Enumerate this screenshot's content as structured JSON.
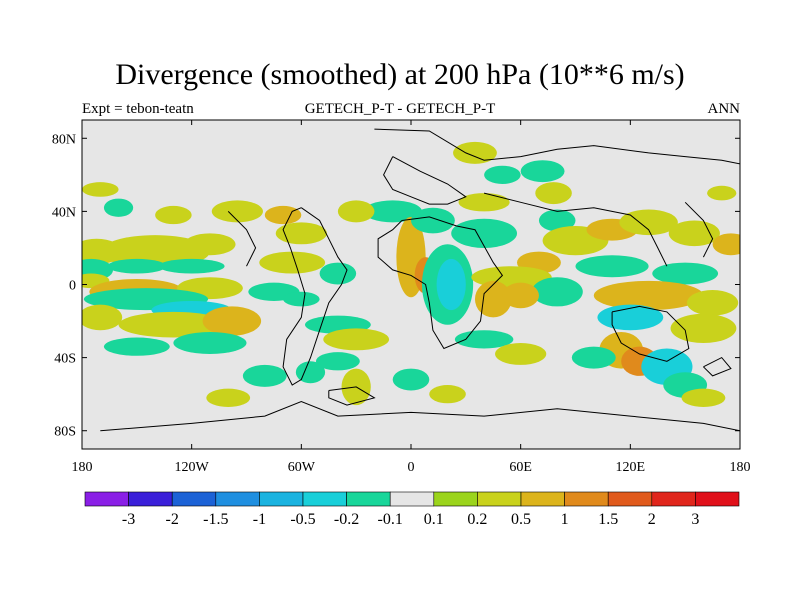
{
  "chart_data": {
    "type": "heatmap",
    "title": "Divergence (smoothed) at 200 hPa (10**6 m/s)",
    "left_string": "Expt = tebon-teatn",
    "center_string": "GETECH_P-T - GETECH_P-T",
    "right_string": "ANN",
    "xlim": [
      -180,
      180
    ],
    "ylim": [
      -90,
      90
    ],
    "x_ticks": [
      {
        "value": -180,
        "label": "180"
      },
      {
        "value": -120,
        "label": "120W"
      },
      {
        "value": -60,
        "label": "60W"
      },
      {
        "value": 0,
        "label": "0"
      },
      {
        "value": 60,
        "label": "60E"
      },
      {
        "value": 120,
        "label": "120E"
      },
      {
        "value": 180,
        "label": "180"
      }
    ],
    "y_ticks": [
      {
        "value": 80,
        "label": "80N"
      },
      {
        "value": 40,
        "label": "40N"
      },
      {
        "value": 0,
        "label": "0"
      },
      {
        "value": -40,
        "label": "40S"
      },
      {
        "value": -80,
        "label": "80S"
      }
    ],
    "colorbar": {
      "levels": [
        "-3",
        "-2",
        "-1.5",
        "-1",
        "-0.5",
        "-0.2",
        "-0.1",
        "0.1",
        "0.2",
        "0.5",
        "1",
        "1.5",
        "2",
        "3"
      ],
      "colors": [
        "#8a1fe6",
        "#3a1fd9",
        "#1c62d6",
        "#1f8fe0",
        "#1bb3e0",
        "#19cfd9",
        "#19d69a",
        "#e6e6e6",
        "#9bd41c",
        "#c9d21c",
        "#dcb41c",
        "#e08a1c",
        "#e05a1c",
        "#e0261c",
        "#e0101a"
      ]
    },
    "missing_color": "#e6e6e6",
    "blobs": [
      {
        "lon": -172,
        "lat": 18,
        "rx": 14,
        "ry": 7,
        "level": 0.2
      },
      {
        "lon": -150,
        "lat": 20,
        "rx": 10,
        "ry": 5,
        "level": 0.5
      },
      {
        "lon": -140,
        "lat": 18,
        "rx": 30,
        "ry": 9,
        "level": 0.2
      },
      {
        "lon": -110,
        "lat": 22,
        "rx": 14,
        "ry": 6,
        "level": 0.2
      },
      {
        "lon": -175,
        "lat": 8,
        "rx": 12,
        "ry": 6,
        "level": -0.2
      },
      {
        "lon": -150,
        "lat": 10,
        "rx": 16,
        "ry": 4,
        "level": -0.2
      },
      {
        "lon": -120,
        "lat": 10,
        "rx": 18,
        "ry": 4,
        "level": -0.2
      },
      {
        "lon": -175,
        "lat": 2,
        "rx": 10,
        "ry": 4,
        "level": 0.2
      },
      {
        "lon": -150,
        "lat": -4,
        "rx": 26,
        "ry": 7,
        "level": 0.5
      },
      {
        "lon": -110,
        "lat": -2,
        "rx": 18,
        "ry": 6,
        "level": 0.2
      },
      {
        "lon": -145,
        "lat": -8,
        "rx": 34,
        "ry": 6,
        "level": -0.2
      },
      {
        "lon": -120,
        "lat": -14,
        "rx": 22,
        "ry": 5,
        "level": -0.5
      },
      {
        "lon": -170,
        "lat": -18,
        "rx": 12,
        "ry": 7,
        "level": 0.2
      },
      {
        "lon": -130,
        "lat": -22,
        "rx": 30,
        "ry": 7,
        "level": 0.2
      },
      {
        "lon": -98,
        "lat": -20,
        "rx": 16,
        "ry": 8,
        "level": 0.5
      },
      {
        "lon": -150,
        "lat": -34,
        "rx": 18,
        "ry": 5,
        "level": -0.2
      },
      {
        "lon": -110,
        "lat": -32,
        "rx": 20,
        "ry": 6,
        "level": -0.2
      },
      {
        "lon": -160,
        "lat": 42,
        "rx": 8,
        "ry": 5,
        "level": -0.2
      },
      {
        "lon": -130,
        "lat": 38,
        "rx": 10,
        "ry": 5,
        "level": 0.2
      },
      {
        "lon": -95,
        "lat": 40,
        "rx": 14,
        "ry": 6,
        "level": 0.2
      },
      {
        "lon": -70,
        "lat": 38,
        "rx": 10,
        "ry": 5,
        "level": 0.5
      },
      {
        "lon": -60,
        "lat": 28,
        "rx": 14,
        "ry": 6,
        "level": 0.2
      },
      {
        "lon": -65,
        "lat": 12,
        "rx": 18,
        "ry": 6,
        "level": 0.2
      },
      {
        "lon": -40,
        "lat": 6,
        "rx": 10,
        "ry": 6,
        "level": -0.2
      },
      {
        "lon": -75,
        "lat": -4,
        "rx": 14,
        "ry": 5,
        "level": -0.2
      },
      {
        "lon": -60,
        "lat": -8,
        "rx": 10,
        "ry": 4,
        "level": -0.2
      },
      {
        "lon": -40,
        "lat": -22,
        "rx": 18,
        "ry": 5,
        "level": -0.2
      },
      {
        "lon": -30,
        "lat": -30,
        "rx": 18,
        "ry": 6,
        "level": 0.2
      },
      {
        "lon": -40,
        "lat": -42,
        "rx": 12,
        "ry": 5,
        "level": -0.2
      },
      {
        "lon": -10,
        "lat": 40,
        "rx": 16,
        "ry": 6,
        "level": -0.2
      },
      {
        "lon": -30,
        "lat": 40,
        "rx": 10,
        "ry": 6,
        "level": 0.2
      },
      {
        "lon": 0,
        "lat": 15,
        "rx": 8,
        "ry": 22,
        "level": 0.5
      },
      {
        "lon": 8,
        "lat": 5,
        "rx": 6,
        "ry": 10,
        "level": 1
      },
      {
        "lon": 20,
        "lat": 0,
        "rx": 14,
        "ry": 22,
        "level": -0.2
      },
      {
        "lon": 22,
        "lat": 0,
        "rx": 8,
        "ry": 14,
        "level": -0.5
      },
      {
        "lon": 40,
        "lat": 28,
        "rx": 18,
        "ry": 8,
        "level": -0.2
      },
      {
        "lon": 12,
        "lat": 35,
        "rx": 12,
        "ry": 7,
        "level": -0.2
      },
      {
        "lon": 50,
        "lat": 60,
        "rx": 10,
        "ry": 5,
        "level": -0.2
      },
      {
        "lon": 35,
        "lat": 72,
        "rx": 12,
        "ry": 6,
        "level": 0.2
      },
      {
        "lon": 40,
        "lat": 45,
        "rx": 14,
        "ry": 5,
        "level": 0.2
      },
      {
        "lon": 78,
        "lat": 50,
        "rx": 10,
        "ry": 6,
        "level": 0.2
      },
      {
        "lon": 80,
        "lat": 35,
        "rx": 10,
        "ry": 6,
        "level": -0.2
      },
      {
        "lon": 72,
        "lat": 62,
        "rx": 12,
        "ry": 6,
        "level": -0.2
      },
      {
        "lon": 70,
        "lat": 12,
        "rx": 12,
        "ry": 6,
        "level": 0.5
      },
      {
        "lon": 55,
        "lat": 4,
        "rx": 22,
        "ry": 6,
        "level": 0.2
      },
      {
        "lon": 90,
        "lat": 24,
        "rx": 18,
        "ry": 8,
        "level": 0.2
      },
      {
        "lon": 110,
        "lat": 30,
        "rx": 14,
        "ry": 6,
        "level": 0.5
      },
      {
        "lon": 130,
        "lat": 34,
        "rx": 16,
        "ry": 7,
        "level": 0.2
      },
      {
        "lon": 155,
        "lat": 28,
        "rx": 14,
        "ry": 7,
        "level": 0.2
      },
      {
        "lon": 175,
        "lat": 22,
        "rx": 10,
        "ry": 6,
        "level": 0.5
      },
      {
        "lon": 110,
        "lat": 10,
        "rx": 20,
        "ry": 6,
        "level": -0.2
      },
      {
        "lon": 150,
        "lat": 6,
        "rx": 18,
        "ry": 6,
        "level": -0.2
      },
      {
        "lon": 80,
        "lat": -4,
        "rx": 14,
        "ry": 8,
        "level": -0.2
      },
      {
        "lon": 45,
        "lat": -8,
        "rx": 10,
        "ry": 10,
        "level": 0.5
      },
      {
        "lon": 60,
        "lat": -6,
        "rx": 10,
        "ry": 7,
        "level": 0.5
      },
      {
        "lon": 130,
        "lat": -6,
        "rx": 30,
        "ry": 8,
        "level": 0.5
      },
      {
        "lon": 165,
        "lat": -10,
        "rx": 14,
        "ry": 7,
        "level": 0.2
      },
      {
        "lon": 120,
        "lat": -18,
        "rx": 18,
        "ry": 7,
        "level": -0.5
      },
      {
        "lon": 160,
        "lat": -24,
        "rx": 18,
        "ry": 8,
        "level": 0.2
      },
      {
        "lon": 115,
        "lat": -36,
        "rx": 12,
        "ry": 10,
        "level": 0.5
      },
      {
        "lon": 125,
        "lat": -42,
        "rx": 10,
        "ry": 8,
        "level": 1
      },
      {
        "lon": 140,
        "lat": -45,
        "rx": 14,
        "ry": 10,
        "level": -0.5
      },
      {
        "lon": 150,
        "lat": -55,
        "rx": 12,
        "ry": 7,
        "level": -0.2
      },
      {
        "lon": 160,
        "lat": -62,
        "rx": 12,
        "ry": 5,
        "level": 0.2
      },
      {
        "lon": 100,
        "lat": -40,
        "rx": 12,
        "ry": 6,
        "level": -0.2
      },
      {
        "lon": 40,
        "lat": -30,
        "rx": 16,
        "ry": 5,
        "level": -0.2
      },
      {
        "lon": 60,
        "lat": -38,
        "rx": 14,
        "ry": 6,
        "level": 0.2
      },
      {
        "lon": -100,
        "lat": -62,
        "rx": 12,
        "ry": 5,
        "level": 0.2
      },
      {
        "lon": -80,
        "lat": -50,
        "rx": 12,
        "ry": 6,
        "level": -0.2
      },
      {
        "lon": -55,
        "lat": -48,
        "rx": 8,
        "ry": 6,
        "level": -0.2
      },
      {
        "lon": -30,
        "lat": -56,
        "rx": 8,
        "ry": 10,
        "level": 0.2
      },
      {
        "lon": 0,
        "lat": -52,
        "rx": 10,
        "ry": 6,
        "level": -0.2
      },
      {
        "lon": 20,
        "lat": -60,
        "rx": 10,
        "ry": 5,
        "level": 0.2
      },
      {
        "lon": -170,
        "lat": 52,
        "rx": 10,
        "ry": 4,
        "level": 0.2
      },
      {
        "lon": 170,
        "lat": 50,
        "rx": 8,
        "ry": 4,
        "level": 0.2
      }
    ],
    "land_outlines": [
      [
        [
          -20,
          85
        ],
        [
          10,
          84
        ],
        [
          30,
          72
        ],
        [
          40,
          68
        ],
        [
          60,
          70
        ],
        [
          80,
          74
        ],
        [
          100,
          76
        ],
        [
          130,
          72
        ],
        [
          150,
          70
        ],
        [
          170,
          68
        ],
        [
          180,
          66
        ]
      ],
      [
        [
          -10,
          70
        ],
        [
          5,
          62
        ],
        [
          20,
          55
        ],
        [
          30,
          48
        ],
        [
          20,
          44
        ],
        [
          10,
          44
        ],
        [
          0,
          48
        ],
        [
          -10,
          52
        ],
        [
          -15,
          60
        ],
        [
          -10,
          70
        ]
      ],
      [
        [
          -170,
          -80
        ],
        [
          -120,
          -76
        ],
        [
          -80,
          -72
        ],
        [
          -60,
          -64
        ],
        [
          -40,
          -72
        ],
        [
          0,
          -70
        ],
        [
          40,
          -72
        ],
        [
          80,
          -68
        ],
        [
          120,
          -72
        ],
        [
          160,
          -76
        ],
        [
          180,
          -80
        ]
      ],
      [
        [
          -60,
          42
        ],
        [
          -50,
          35
        ],
        [
          -45,
          25
        ],
        [
          -40,
          15
        ],
        [
          -35,
          8
        ],
        [
          -38,
          0
        ],
        [
          -45,
          -10
        ],
        [
          -50,
          -25
        ],
        [
          -55,
          -40
        ],
        [
          -60,
          -52
        ],
        [
          -65,
          -55
        ],
        [
          -70,
          -45
        ],
        [
          -68,
          -30
        ],
        [
          -60,
          -18
        ],
        [
          -58,
          -5
        ],
        [
          -62,
          8
        ],
        [
          -66,
          20
        ],
        [
          -70,
          30
        ],
        [
          -65,
          40
        ],
        [
          -60,
          42
        ]
      ],
      [
        [
          -5,
          35
        ],
        [
          10,
          37
        ],
        [
          25,
          32
        ],
        [
          35,
          30
        ],
        [
          45,
          12
        ],
        [
          50,
          5
        ],
        [
          40,
          -5
        ],
        [
          38,
          -20
        ],
        [
          30,
          -30
        ],
        [
          18,
          -35
        ],
        [
          12,
          -25
        ],
        [
          10,
          -10
        ],
        [
          8,
          0
        ],
        [
          0,
          5
        ],
        [
          -10,
          8
        ],
        [
          -18,
          15
        ],
        [
          -18,
          25
        ],
        [
          -10,
          30
        ],
        [
          -5,
          35
        ]
      ],
      [
        [
          40,
          50
        ],
        [
          60,
          45
        ],
        [
          80,
          40
        ],
        [
          100,
          42
        ],
        [
          120,
          38
        ],
        [
          130,
          30
        ],
        [
          135,
          20
        ],
        [
          140,
          10
        ]
      ],
      [
        [
          110,
          -15
        ],
        [
          125,
          -12
        ],
        [
          140,
          -15
        ],
        [
          150,
          -25
        ],
        [
          152,
          -35
        ],
        [
          140,
          -42
        ],
        [
          125,
          -38
        ],
        [
          115,
          -32
        ],
        [
          110,
          -22
        ],
        [
          110,
          -15
        ]
      ],
      [
        [
          160,
          -45
        ],
        [
          170,
          -40
        ],
        [
          175,
          -46
        ],
        [
          165,
          -50
        ],
        [
          160,
          -45
        ]
      ],
      [
        [
          -45,
          -58
        ],
        [
          -30,
          -56
        ],
        [
          -20,
          -62
        ],
        [
          -35,
          -66
        ],
        [
          -45,
          -62
        ],
        [
          -45,
          -58
        ]
      ],
      [
        [
          -100,
          40
        ],
        [
          -90,
          30
        ],
        [
          -85,
          20
        ],
        [
          -90,
          10
        ]
      ],
      [
        [
          150,
          45
        ],
        [
          160,
          35
        ],
        [
          165,
          25
        ],
        [
          160,
          15
        ]
      ]
    ]
  }
}
